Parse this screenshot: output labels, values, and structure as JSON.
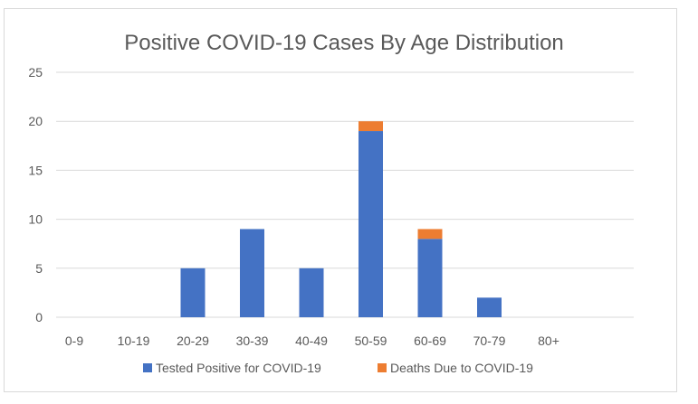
{
  "chart_data": {
    "type": "bar",
    "stacked": true,
    "title": "Positive COVID-19 Cases By Age Distribution",
    "xlabel": "",
    "ylabel": "",
    "categories": [
      "0-9",
      "10-19",
      "20-29",
      "30-39",
      "40-49",
      "50-59",
      "60-69",
      "70-79",
      "80+"
    ],
    "series": [
      {
        "name": "Tested Positive for COVID-19",
        "color": "#4472c4",
        "values": [
          0,
          0,
          5,
          9,
          5,
          19,
          8,
          2,
          0
        ]
      },
      {
        "name": "Deaths Due to COVID-19",
        "color": "#ed7d31",
        "values": [
          0,
          0,
          0,
          0,
          0,
          1,
          1,
          0,
          0
        ]
      }
    ],
    "ylim": [
      0,
      25
    ],
    "yticks": [
      "0",
      "5",
      "10",
      "15",
      "20",
      "25"
    ],
    "grid": true,
    "legend_position": "bottom"
  }
}
